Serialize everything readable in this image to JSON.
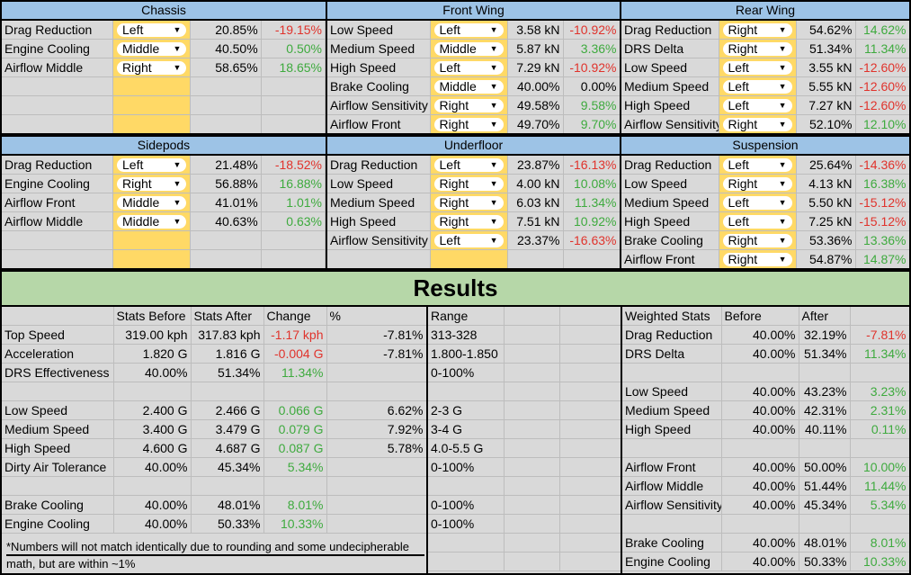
{
  "panels": {
    "chassis": {
      "title": "Chassis",
      "rows": [
        {
          "stat": "Drag Reduction",
          "opt": "Left",
          "value": "20.85%",
          "change": "-19.15%",
          "dir": "neg"
        },
        {
          "stat": "Engine Cooling",
          "opt": "Middle",
          "value": "40.50%",
          "change": "0.50%",
          "dir": "pos"
        },
        {
          "stat": "Airflow Middle",
          "opt": "Right",
          "value": "58.65%",
          "change": "18.65%",
          "dir": "pos"
        }
      ]
    },
    "front_wing": {
      "title": "Front Wing",
      "rows": [
        {
          "stat": "Low Speed",
          "opt": "Left",
          "value": "3.58 kN",
          "change": "-10.92%",
          "dir": "neg"
        },
        {
          "stat": "Medium Speed",
          "opt": "Middle",
          "value": "5.87 kN",
          "change": "3.36%",
          "dir": "pos"
        },
        {
          "stat": "High Speed",
          "opt": "Left",
          "value": "7.29 kN",
          "change": "-10.92%",
          "dir": "neg"
        },
        {
          "stat": "Brake Cooling",
          "opt": "Middle",
          "value": "40.00%",
          "change": "0.00%",
          "dir": "zero"
        },
        {
          "stat": "Airflow Sensitivity",
          "opt": "Right",
          "value": "49.58%",
          "change": "9.58%",
          "dir": "pos"
        },
        {
          "stat": "Airflow Front",
          "opt": "Right",
          "value": "49.70%",
          "change": "9.70%",
          "dir": "pos"
        }
      ]
    },
    "rear_wing": {
      "title": "Rear Wing",
      "rows": [
        {
          "stat": "Drag Reduction",
          "opt": "Right",
          "value": "54.62%",
          "change": "14.62%",
          "dir": "pos"
        },
        {
          "stat": "DRS Delta",
          "opt": "Right",
          "value": "51.34%",
          "change": "11.34%",
          "dir": "pos"
        },
        {
          "stat": "Low Speed",
          "opt": "Left",
          "value": "3.55 kN",
          "change": "-12.60%",
          "dir": "neg"
        },
        {
          "stat": "Medium Speed",
          "opt": "Left",
          "value": "5.55 kN",
          "change": "-12.60%",
          "dir": "neg"
        },
        {
          "stat": "High Speed",
          "opt": "Left",
          "value": "7.27 kN",
          "change": "-12.60%",
          "dir": "neg"
        },
        {
          "stat": "Airflow Sensitivity",
          "opt": "Right",
          "value": "52.10%",
          "change": "12.10%",
          "dir": "pos"
        }
      ]
    },
    "sidepods": {
      "title": "Sidepods",
      "rows": [
        {
          "stat": "Drag Reduction",
          "opt": "Left",
          "value": "21.48%",
          "change": "-18.52%",
          "dir": "neg"
        },
        {
          "stat": "Engine Cooling",
          "opt": "Right",
          "value": "56.88%",
          "change": "16.88%",
          "dir": "pos"
        },
        {
          "stat": "Airflow Front",
          "opt": "Middle",
          "value": "41.01%",
          "change": "1.01%",
          "dir": "pos"
        },
        {
          "stat": "Airflow Middle",
          "opt": "Middle",
          "value": "40.63%",
          "change": "0.63%",
          "dir": "pos"
        }
      ]
    },
    "underfloor": {
      "title": "Underfloor",
      "rows": [
        {
          "stat": "Drag Reduction",
          "opt": "Left",
          "value": "23.87%",
          "change": "-16.13%",
          "dir": "neg"
        },
        {
          "stat": "Low Speed",
          "opt": "Right",
          "value": "4.00 kN",
          "change": "10.08%",
          "dir": "pos"
        },
        {
          "stat": "Medium Speed",
          "opt": "Right",
          "value": "6.03 kN",
          "change": "11.34%",
          "dir": "pos"
        },
        {
          "stat": "High Speed",
          "opt": "Right",
          "value": "7.51 kN",
          "change": "10.92%",
          "dir": "pos"
        },
        {
          "stat": "Airflow Sensitivity",
          "opt": "Left",
          "value": "23.37%",
          "change": "-16.63%",
          "dir": "neg"
        }
      ]
    },
    "suspension": {
      "title": "Suspension",
      "rows": [
        {
          "stat": "Drag Reduction",
          "opt": "Left",
          "value": "25.64%",
          "change": "-14.36%",
          "dir": "neg"
        },
        {
          "stat": "Low Speed",
          "opt": "Right",
          "value": "4.13 kN",
          "change": "16.38%",
          "dir": "pos"
        },
        {
          "stat": "Medium Speed",
          "opt": "Left",
          "value": "5.50 kN",
          "change": "-15.12%",
          "dir": "neg"
        },
        {
          "stat": "High Speed",
          "opt": "Left",
          "value": "7.25 kN",
          "change": "-15.12%",
          "dir": "neg"
        },
        {
          "stat": "Brake Cooling",
          "opt": "Right",
          "value": "53.36%",
          "change": "13.36%",
          "dir": "pos"
        },
        {
          "stat": "Airflow Front",
          "opt": "Right",
          "value": "54.87%",
          "change": "14.87%",
          "dir": "pos"
        }
      ]
    }
  },
  "results": {
    "title": "Results",
    "headers": {
      "before": "Stats Before",
      "after": "Stats After",
      "change": "Change",
      "pct": "%",
      "range": "Range"
    },
    "rows": [
      {
        "stat": "Top Speed",
        "before": "319.00 kph",
        "after": "317.83 kph",
        "change": "-1.17 kph",
        "dir": "neg",
        "pct": "-7.81%",
        "range": "313-328"
      },
      {
        "stat": "Acceleration",
        "before": "1.820 G",
        "after": "1.816 G",
        "change": "-0.004 G",
        "dir": "neg",
        "pct": "-7.81%",
        "range": "1.800-1.850"
      },
      {
        "stat": "DRS Effectiveness",
        "before": "40.00%",
        "after": "51.34%",
        "change": "11.34%",
        "dir": "pos",
        "pct": "",
        "range": "0-100%"
      },
      {
        "stat": "",
        "before": "",
        "after": "",
        "change": "",
        "dir": "",
        "pct": "",
        "range": ""
      },
      {
        "stat": "Low Speed",
        "before": "2.400 G",
        "after": "2.466 G",
        "change": "0.066 G",
        "dir": "pos",
        "pct": "6.62%",
        "range": "2-3 G"
      },
      {
        "stat": "Medium Speed",
        "before": "3.400 G",
        "after": "3.479 G",
        "change": "0.079 G",
        "dir": "pos",
        "pct": "7.92%",
        "range": "3-4 G"
      },
      {
        "stat": "High Speed",
        "before": "4.600 G",
        "after": "4.687 G",
        "change": "0.087 G",
        "dir": "pos",
        "pct": "5.78%",
        "range": "4.0-5.5 G"
      },
      {
        "stat": "Dirty Air Tolerance",
        "before": "40.00%",
        "after": "45.34%",
        "change": "5.34%",
        "dir": "pos",
        "pct": "",
        "range": "0-100%"
      },
      {
        "stat": "",
        "before": "",
        "after": "",
        "change": "",
        "dir": "",
        "pct": "",
        "range": ""
      },
      {
        "stat": "Brake Cooling",
        "before": "40.00%",
        "after": "48.01%",
        "change": "8.01%",
        "dir": "pos",
        "pct": "",
        "range": "0-100%"
      },
      {
        "stat": "Engine Cooling",
        "before": "40.00%",
        "after": "50.33%",
        "change": "10.33%",
        "dir": "pos",
        "pct": "",
        "range": "0-100%"
      }
    ],
    "footnote_line1": "*Numbers will not match identically due to rounding and some undecipherable",
    "footnote_line2": "math, but are within ~1%"
  },
  "weighted": {
    "headers": {
      "stat": "Weighted Stats",
      "before": "Before",
      "after": "After"
    },
    "rows": [
      {
        "stat": "Drag Reduction",
        "before": "40.00%",
        "after": "32.19%",
        "change": "-7.81%",
        "dir": "neg"
      },
      {
        "stat": "DRS Delta",
        "before": "40.00%",
        "after": "51.34%",
        "change": "11.34%",
        "dir": "pos"
      },
      {
        "stat": "",
        "before": "",
        "after": "",
        "change": "",
        "dir": ""
      },
      {
        "stat": "Low Speed",
        "before": "40.00%",
        "after": "43.23%",
        "change": "3.23%",
        "dir": "pos"
      },
      {
        "stat": "Medium Speed",
        "before": "40.00%",
        "after": "42.31%",
        "change": "2.31%",
        "dir": "pos"
      },
      {
        "stat": "High Speed",
        "before": "40.00%",
        "after": "40.11%",
        "change": "0.11%",
        "dir": "pos"
      },
      {
        "stat": "",
        "before": "",
        "after": "",
        "change": "",
        "dir": ""
      },
      {
        "stat": "Airflow Front",
        "before": "40.00%",
        "after": "50.00%",
        "change": "10.00%",
        "dir": "pos"
      },
      {
        "stat": "Airflow Middle",
        "before": "40.00%",
        "after": "51.44%",
        "change": "11.44%",
        "dir": "pos"
      },
      {
        "stat": "Airflow Sensitivity",
        "before": "40.00%",
        "after": "45.34%",
        "change": "5.34%",
        "dir": "pos"
      },
      {
        "stat": "",
        "before": "",
        "after": "",
        "change": "",
        "dir": ""
      },
      {
        "stat": "Brake Cooling",
        "before": "40.00%",
        "after": "48.01%",
        "change": "8.01%",
        "dir": "pos"
      },
      {
        "stat": "Engine Cooling",
        "before": "40.00%",
        "after": "50.33%",
        "change": "10.33%",
        "dir": "pos"
      }
    ]
  },
  "colors": {
    "header_blue": "#9dc3e6",
    "results_green": "#b6d7a8",
    "dropdown_yellow": "#ffd966",
    "negative": "#e0332c",
    "positive": "#3eaa3e",
    "background": "#d9d9d9"
  },
  "icons": {
    "dropdown": "caret-down-icon"
  }
}
